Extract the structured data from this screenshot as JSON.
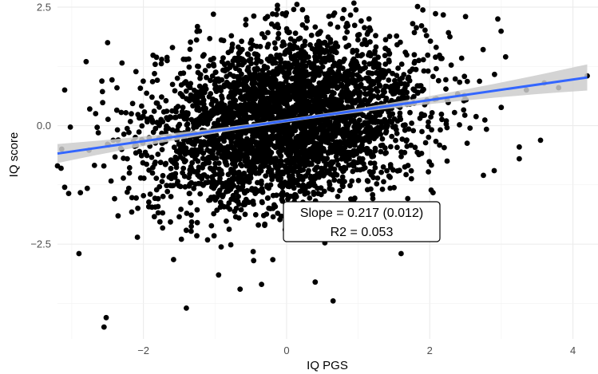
{
  "chart_data": {
    "type": "scatter",
    "title": "",
    "xlabel": "IQ PGS",
    "ylabel": "IQ score",
    "xlim": [
      -3.2,
      4.35
    ],
    "ylim": [
      -4.5,
      2.65
    ],
    "x_ticks": [
      -2,
      0,
      2,
      4
    ],
    "x_tick_labels": [
      "−2",
      "0",
      "2",
      "4"
    ],
    "y_ticks": [
      -2.5,
      0.0,
      2.5
    ],
    "y_tick_labels": [
      "−2.5",
      "0.0",
      "2.5"
    ],
    "grid": true,
    "legend": "none",
    "point_color": "#000000",
    "fit_line": {
      "slope": 0.217,
      "intercept": 0.105,
      "x_range": [
        -3.2,
        4.2
      ],
      "color": "#3366ff",
      "ribbon_color": "#cccccc"
    },
    "outlier_points": [
      [
        -2.55,
        -4.25
      ],
      [
        -2.52,
        -4.05
      ],
      [
        -1.4,
        -3.85
      ],
      [
        0.65,
        -3.7
      ],
      [
        -2.9,
        -2.7
      ],
      [
        -3.1,
        -1.3
      ],
      [
        -3.2,
        -0.85
      ],
      [
        -3.15,
        -0.9
      ],
      [
        -2.75,
        0.35
      ],
      [
        -3.1,
        0.75
      ],
      [
        -2.8,
        1.35
      ],
      [
        -2.5,
        1.75
      ],
      [
        -0.35,
        -3.35
      ],
      [
        0.4,
        -3.3
      ],
      [
        -0.65,
        -3.45
      ],
      [
        -0.95,
        -3.15
      ],
      [
        2.5,
        2.3
      ],
      [
        2.95,
        2.25
      ],
      [
        3.35,
        0.75
      ],
      [
        3.6,
        0.9
      ],
      [
        3.8,
        0.8
      ],
      [
        4.2,
        1.05
      ],
      [
        3.25,
        -0.45
      ],
      [
        3.25,
        -0.7
      ],
      [
        2.9,
        -0.95
      ],
      [
        2.75,
        -1.05
      ],
      [
        0.1,
        2.45
      ],
      [
        1.6,
        -2.7
      ]
    ],
    "annotation": {
      "line1": "Slope = 0.217 (0.012)",
      "line2": "R2 = 0.053"
    }
  }
}
